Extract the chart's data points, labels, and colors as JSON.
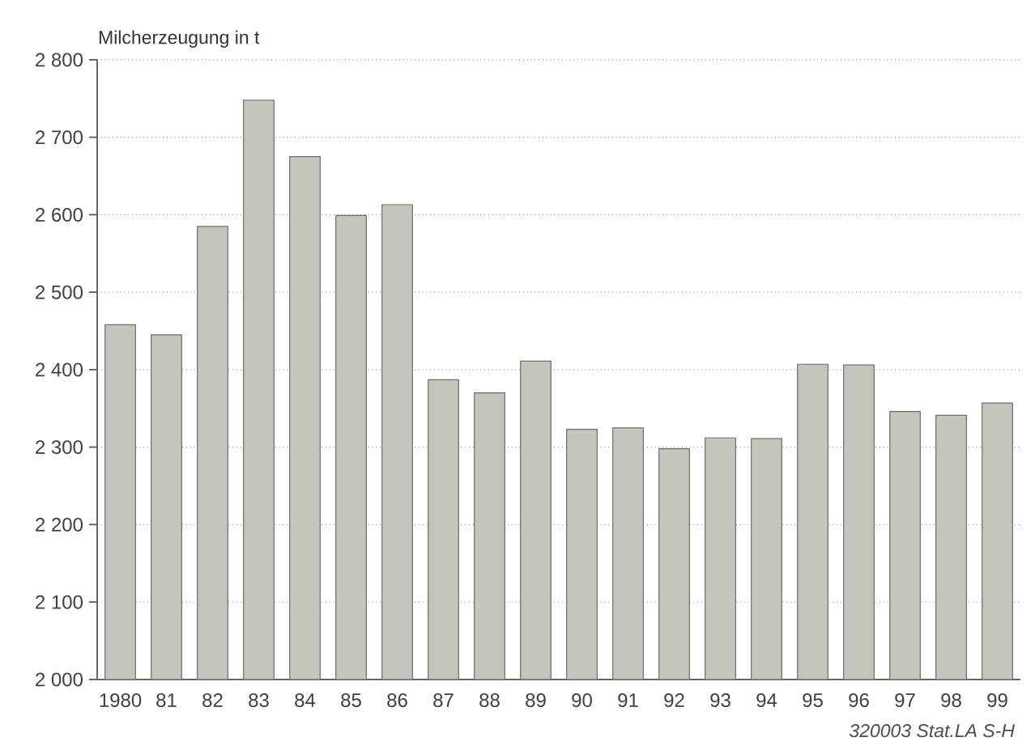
{
  "chart_data": {
    "type": "bar",
    "ylabel": "Milcherzeugung in t",
    "categories": [
      "1980",
      "81",
      "82",
      "83",
      "84",
      "85",
      "86",
      "87",
      "88",
      "89",
      "90",
      "91",
      "92",
      "93",
      "94",
      "95",
      "96",
      "97",
      "98",
      "99"
    ],
    "values": [
      2458,
      2445,
      2585,
      2748,
      2675,
      2599,
      2613,
      2387,
      2370,
      2411,
      2323,
      2325,
      2298,
      2312,
      2311,
      2407,
      2406,
      2346,
      2341,
      2357
    ],
    "color": "#c4c5bd",
    "ylim": [
      2000,
      2800
    ],
    "yticks": [
      {
        "value": 2000,
        "label": "2 000"
      },
      {
        "value": 2100,
        "label": "2 100"
      },
      {
        "value": 2200,
        "label": "2 200"
      },
      {
        "value": 2300,
        "label": "2 300"
      },
      {
        "value": 2400,
        "label": "2 400"
      },
      {
        "value": 2500,
        "label": "2 500"
      },
      {
        "value": 2600,
        "label": "2 600"
      },
      {
        "value": 2700,
        "label": "2 700"
      },
      {
        "value": 2800,
        "label": "2 800"
      }
    ],
    "grid": "y",
    "annotations": [
      "320003 Stat.LA S-H"
    ]
  }
}
